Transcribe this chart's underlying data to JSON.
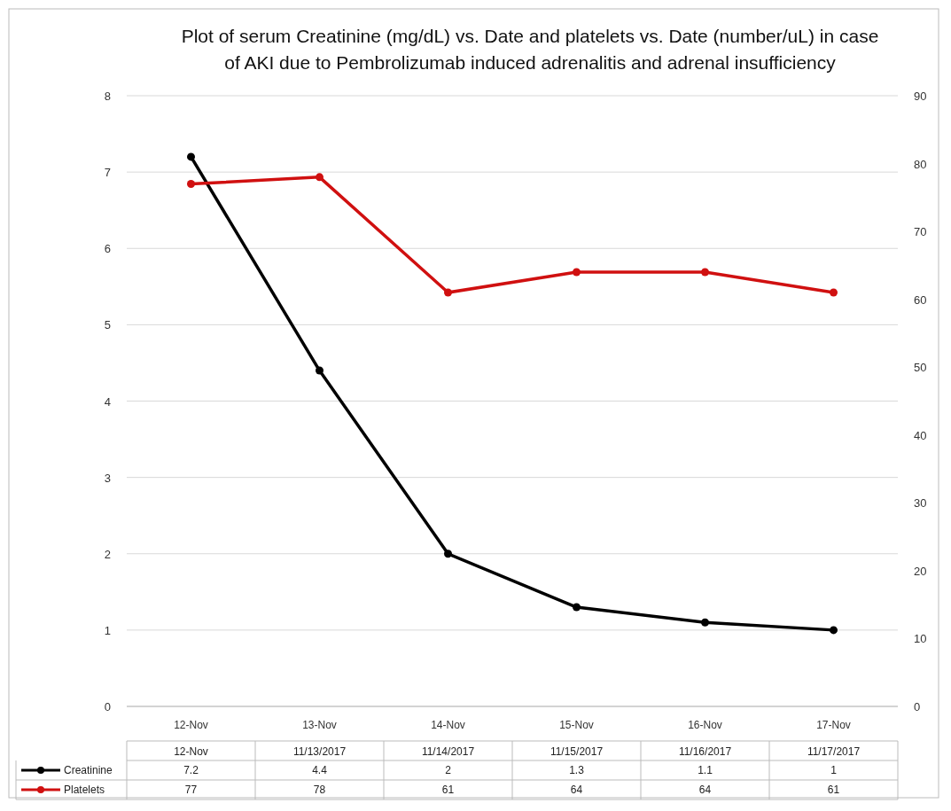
{
  "chart_data": {
    "type": "line",
    "title": "Plot of serum Creatinine (mg/dL) vs. Date and platelets vs. Date (number/uL) in case of AKI due to Pembrolizumab induced adrenalitis and adrenal insufficiency",
    "categories": [
      "12-Nov",
      "13-Nov",
      "14-Nov",
      "15-Nov",
      "16-Nov",
      "17-Nov"
    ],
    "annotations": [
      "12-Nov",
      "11/13/2017",
      "11/14/2017",
      "11/15/2017",
      "11/16/2017",
      "11/17/2017"
    ],
    "series": [
      {
        "name": "Creatinine",
        "color": "#000000",
        "values": [
          7.2,
          4.4,
          2,
          1.3,
          1.1,
          1
        ]
      },
      {
        "name": "Platelets",
        "color": "#d01010",
        "values": [
          77,
          78,
          61,
          64,
          64,
          61
        ],
        "axis": "y2"
      }
    ],
    "ylim": [
      0,
      8
    ],
    "yticks": [
      0,
      1,
      2,
      3,
      4,
      5,
      6,
      7,
      8
    ],
    "y2lim": [
      0,
      90
    ],
    "y2ticks": [
      0,
      10,
      20,
      30,
      40,
      50,
      60,
      70,
      80,
      90
    ],
    "grid": "y",
    "legend": "bottom left",
    "marker": "circle",
    "line_style": "solid",
    "data_labels": true
  }
}
